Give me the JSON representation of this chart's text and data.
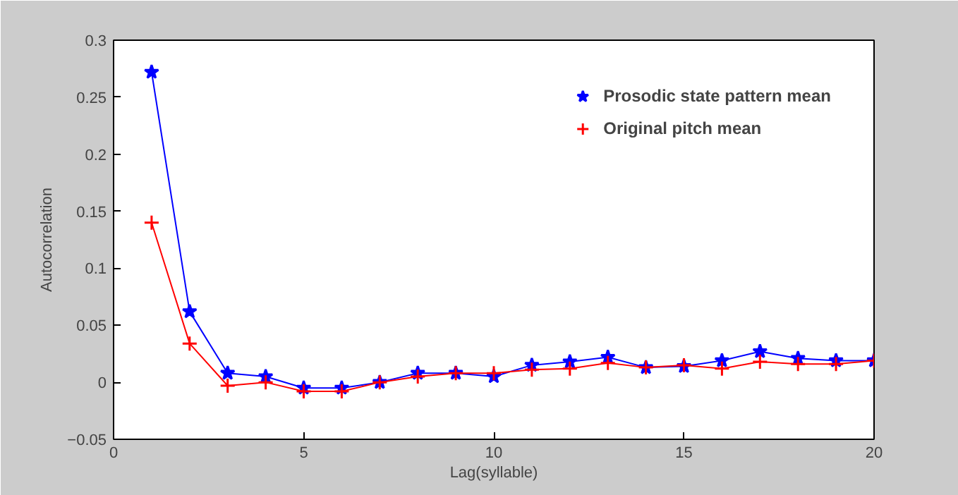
{
  "chart_data": {
    "type": "line",
    "xlabel": "Lag(syllable)",
    "ylabel": "Autocorrelation",
    "x": [
      1,
      2,
      3,
      4,
      5,
      6,
      7,
      8,
      9,
      10,
      11,
      12,
      13,
      14,
      15,
      16,
      17,
      18,
      19,
      20
    ],
    "xlim": [
      0,
      20
    ],
    "xticks": [
      0,
      5,
      10,
      15,
      20
    ],
    "ylim": [
      -0.05,
      0.3
    ],
    "yticks": [
      -0.05,
      0,
      0.05,
      0.1,
      0.15,
      0.2,
      0.25,
      0.3
    ],
    "grid": false,
    "legend": "top right",
    "series": [
      {
        "name": "Prosodic state pattern mean",
        "color": "#0000ff",
        "marker": "star",
        "values": [
          0.272,
          0.062,
          0.008,
          0.005,
          -0.005,
          -0.005,
          0.0,
          0.008,
          0.008,
          0.005,
          0.015,
          0.018,
          0.022,
          0.013,
          0.014,
          0.019,
          0.027,
          0.021,
          0.019,
          0.019
        ]
      },
      {
        "name": "Original pitch mean",
        "color": "#ff0000",
        "marker": "cross",
        "values": [
          0.14,
          0.034,
          -0.003,
          0.0,
          -0.008,
          -0.008,
          0.0,
          0.005,
          0.008,
          0.008,
          0.011,
          0.012,
          0.017,
          0.013,
          0.015,
          0.012,
          0.018,
          0.016,
          0.016,
          0.019
        ]
      }
    ]
  }
}
